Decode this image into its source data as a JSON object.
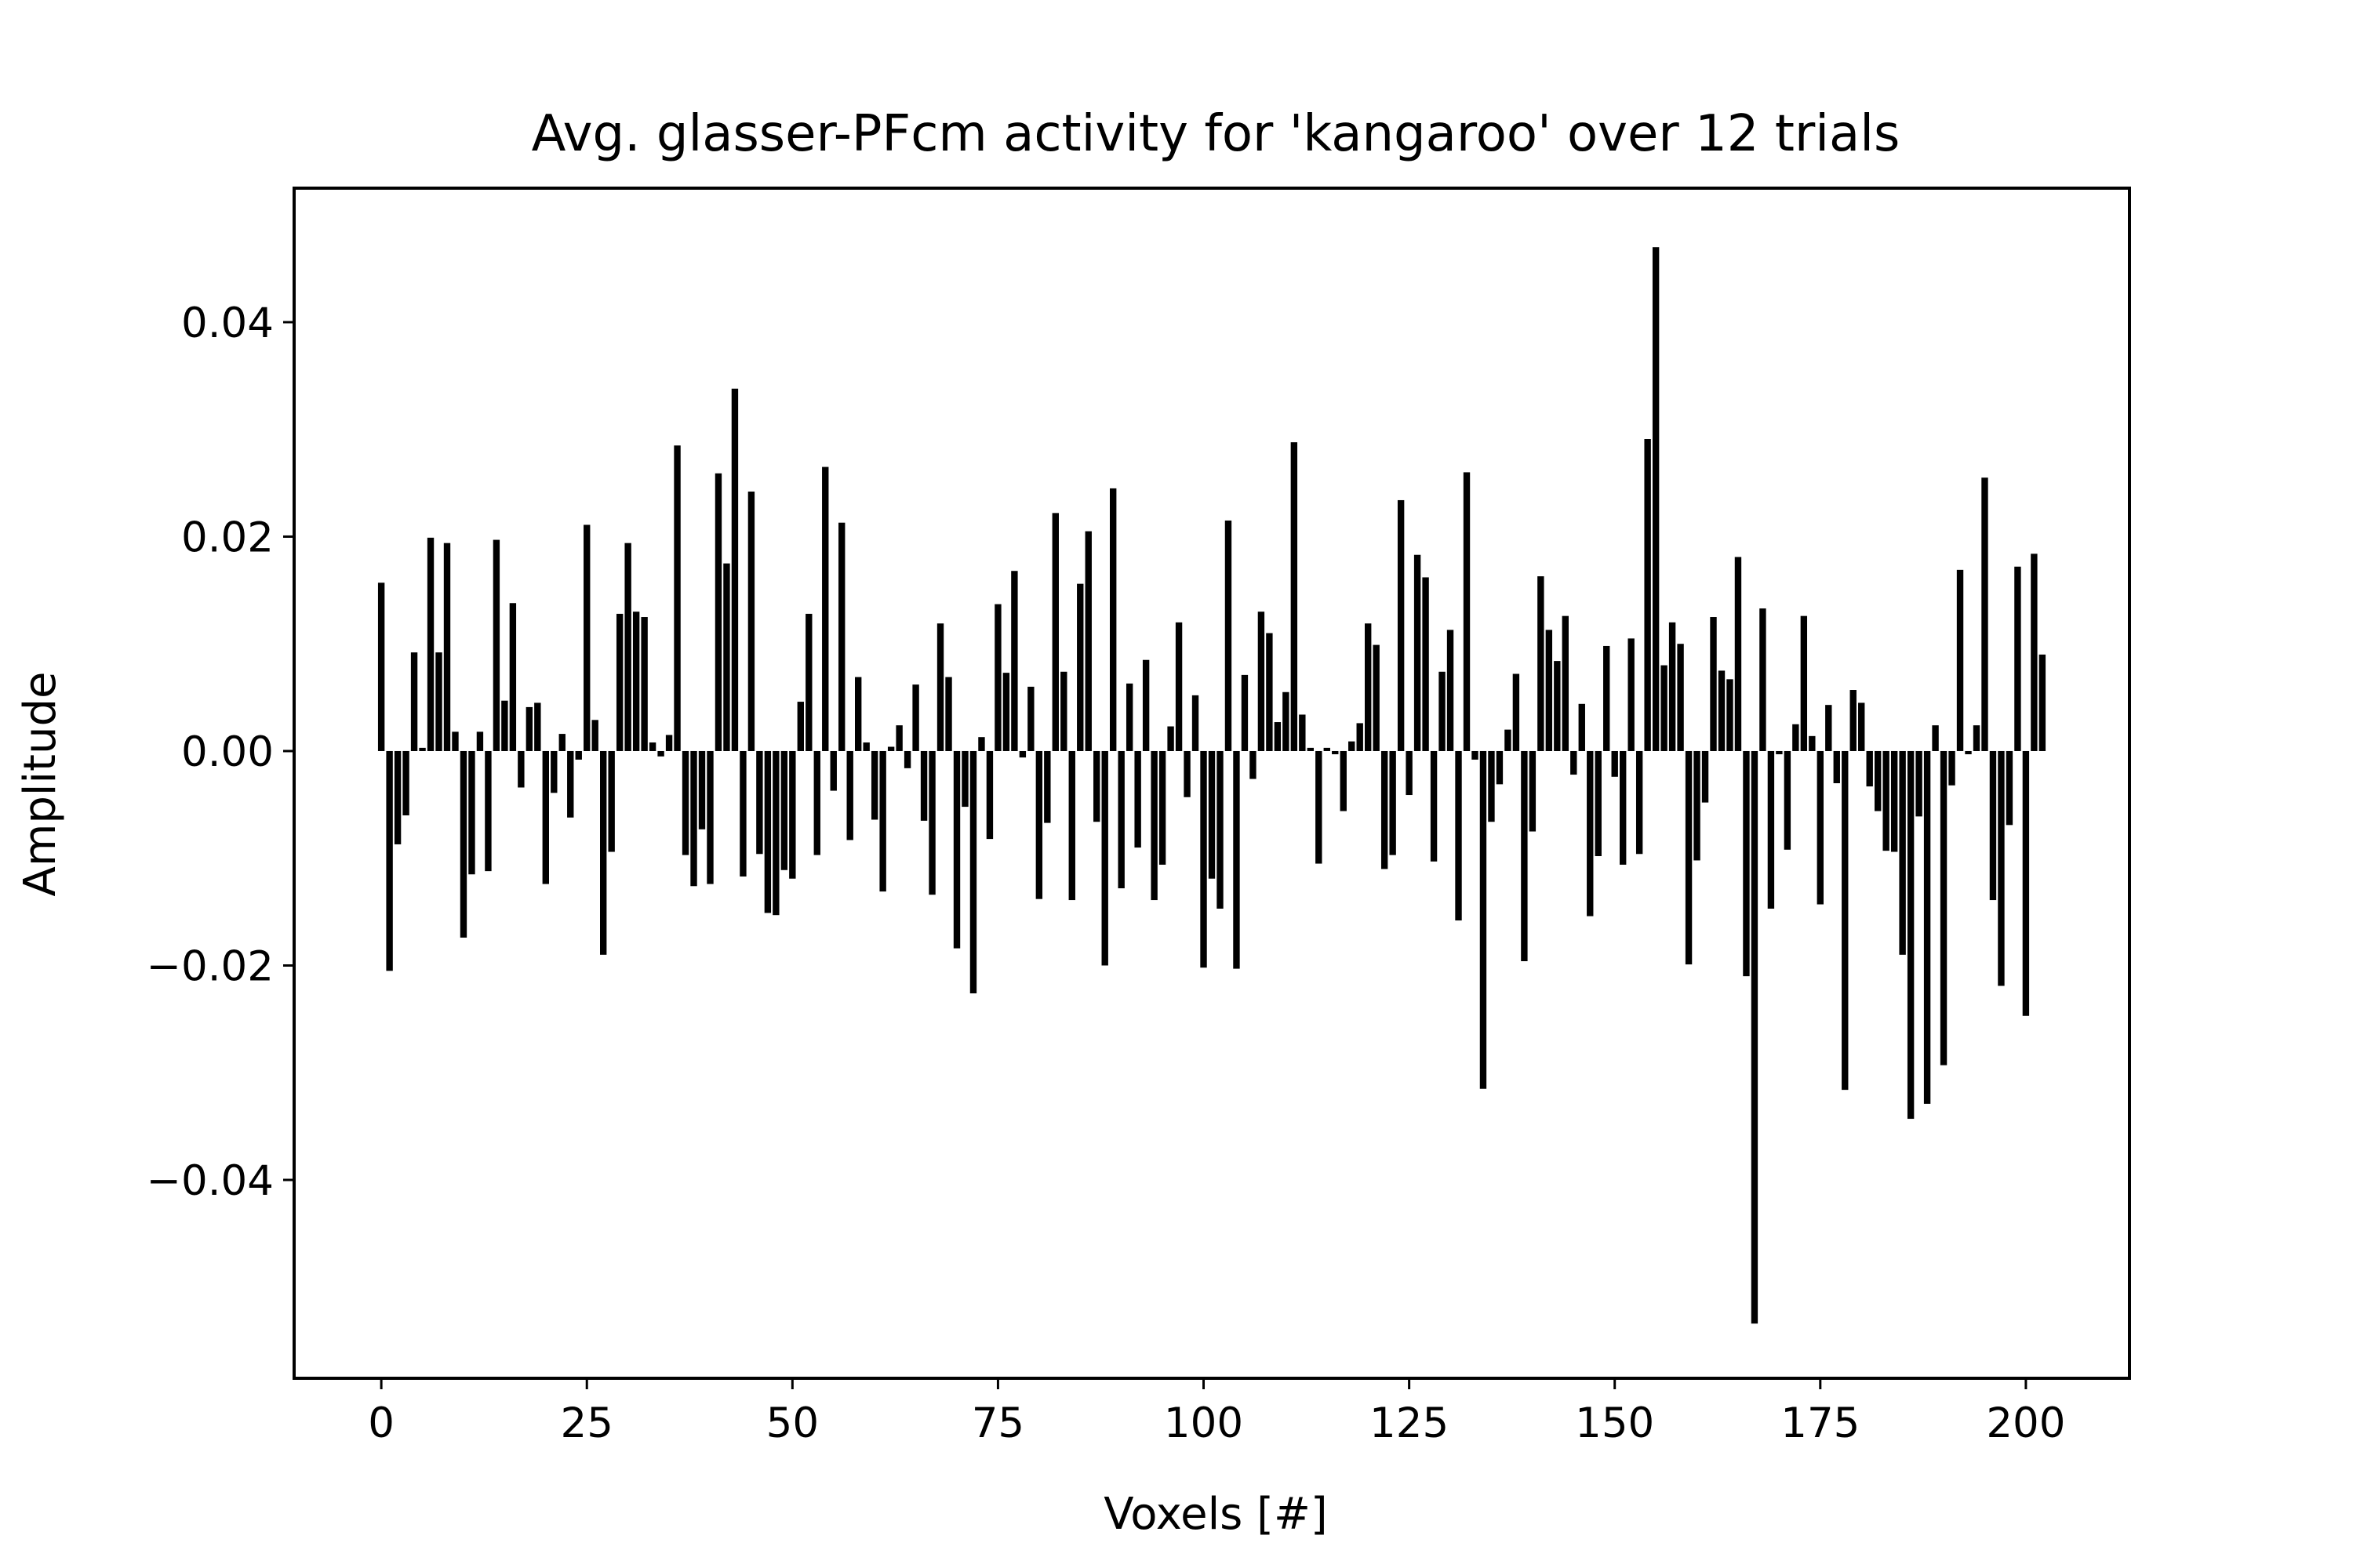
{
  "chart_data": {
    "type": "bar",
    "title": "Avg. glasser-PFcm activity for 'kangaroo' over 12 trials",
    "xlabel": "Voxels [#]",
    "ylabel": "Amplitude",
    "xlim": [
      -10.6,
      212.6
    ],
    "ylim": [
      -0.0585,
      0.0525
    ],
    "xticks": [
      0,
      25,
      50,
      75,
      100,
      125,
      150,
      175,
      200
    ],
    "xtick_labels": [
      "0",
      "25",
      "50",
      "75",
      "100",
      "125",
      "150",
      "175",
      "200"
    ],
    "yticks": [
      -0.04,
      -0.02,
      0.0,
      0.02,
      0.04
    ],
    "ytick_labels": [
      "−0.04",
      "−0.02",
      "0.00",
      "0.02",
      "0.04"
    ],
    "grid": false,
    "bar_color": "#000000",
    "x": [
      0,
      1,
      2,
      3,
      4,
      5,
      6,
      7,
      8,
      9,
      10,
      11,
      12,
      13,
      14,
      15,
      16,
      17,
      18,
      19,
      20,
      21,
      22,
      23,
      24,
      25,
      26,
      27,
      28,
      29,
      30,
      31,
      32,
      33,
      34,
      35,
      36,
      37,
      38,
      39,
      40,
      41,
      42,
      43,
      44,
      45,
      46,
      47,
      48,
      49,
      50,
      51,
      52,
      53,
      54,
      55,
      56,
      57,
      58,
      59,
      60,
      61,
      62,
      63,
      64,
      65,
      66,
      67,
      68,
      69,
      70,
      71,
      72,
      73,
      74,
      75,
      76,
      77,
      78,
      79,
      80,
      81,
      82,
      83,
      84,
      85,
      86,
      87,
      88,
      89,
      90,
      91,
      92,
      93,
      94,
      95,
      96,
      97,
      98,
      99,
      100,
      101,
      102,
      103,
      104,
      105,
      106,
      107,
      108,
      109,
      110,
      111,
      112,
      113,
      114,
      115,
      116,
      117,
      118,
      119,
      120,
      121,
      122,
      123,
      124,
      125,
      126,
      127,
      128,
      129,
      130,
      131,
      132,
      133,
      134,
      135,
      136,
      137,
      138,
      139,
      140,
      141,
      142,
      143,
      144,
      145,
      146,
      147,
      148,
      149,
      150,
      151,
      152,
      153,
      154,
      155,
      156,
      157,
      158,
      159,
      160,
      161,
      162,
      163,
      164,
      165,
      166,
      167,
      168,
      169,
      170,
      171,
      172,
      173,
      174,
      175,
      176,
      177,
      178,
      179,
      180,
      181,
      182,
      183,
      184,
      185,
      186,
      187,
      188,
      189,
      190,
      191,
      192,
      193,
      194,
      195,
      196,
      197,
      198,
      199,
      200,
      201,
      202
    ],
    "values": [
      0.0157,
      -0.0205,
      -0.0087,
      -0.006,
      0.0092,
      0.0003,
      0.0199,
      0.0092,
      0.0194,
      0.0018,
      -0.0174,
      -0.0115,
      0.0018,
      -0.0112,
      0.0197,
      0.0047,
      0.0138,
      -0.0034,
      0.0041,
      0.0045,
      -0.0124,
      -0.0039,
      0.0016,
      -0.0062,
      -0.0008,
      0.0211,
      0.0029,
      -0.019,
      -0.0094,
      0.0128,
      0.0194,
      0.013,
      0.0125,
      0.0008,
      -0.0005,
      0.0015,
      0.0285,
      -0.0097,
      -0.0126,
      -0.0073,
      -0.0124,
      0.0259,
      0.0175,
      0.0338,
      -0.0117,
      0.0242,
      -0.0096,
      -0.0151,
      -0.0153,
      -0.0111,
      -0.0119,
      0.0046,
      0.0128,
      -0.0097,
      0.0265,
      -0.0037,
      0.0213,
      -0.0083,
      0.0069,
      0.0008,
      -0.0064,
      -0.0131,
      0.0004,
      0.0024,
      -0.0016,
      0.0062,
      -0.0065,
      -0.0134,
      0.0119,
      0.0069,
      -0.0184,
      -0.0052,
      -0.0226,
      0.0013,
      -0.0082,
      0.0137,
      0.0073,
      0.0168,
      -0.0006,
      0.006,
      -0.0138,
      -0.0067,
      0.0222,
      0.0074,
      -0.0139,
      0.0156,
      0.0205,
      -0.0066,
      -0.02,
      0.0245,
      -0.0128,
      0.0063,
      -0.009,
      0.0085,
      -0.0139,
      -0.0106,
      0.0023,
      0.012,
      -0.0043,
      0.0052,
      -0.0202,
      -0.0119,
      -0.0147,
      0.0215,
      -0.0203,
      0.0071,
      -0.0026,
      0.013,
      0.011,
      0.0027,
      0.0055,
      0.0288,
      0.0034,
      0.0003,
      -0.0105,
      0.0003,
      -0.0003,
      -0.0056,
      0.0009,
      0.0026,
      0.0119,
      0.0099,
      -0.011,
      -0.0097,
      0.0234,
      -0.0041,
      0.0183,
      0.0162,
      -0.0103,
      0.0074,
      0.0113,
      -0.0158,
      0.026,
      -0.0008,
      -0.0315,
      -0.0066,
      -0.0031,
      0.002,
      0.0072,
      -0.0196,
      -0.0075,
      0.0163,
      0.0113,
      0.0084,
      0.0126,
      -0.0022,
      0.0044,
      -0.0154,
      -0.0098,
      0.0098,
      -0.0024,
      -0.0106,
      0.0105,
      -0.0096,
      0.0291,
      0.047,
      0.008,
      0.012,
      0.01,
      -0.0199,
      -0.0102,
      -0.0048,
      0.0125,
      0.0075,
      0.0067,
      0.0181,
      -0.021,
      -0.0534,
      0.0133,
      -0.0147,
      -0.0003,
      -0.0092,
      0.0025,
      0.0126,
      0.0014,
      -0.0143,
      0.0043,
      -0.003,
      -0.0316,
      0.0057,
      0.0045,
      -0.0033,
      -0.0056,
      -0.0093,
      -0.0094,
      -0.019,
      -0.0343,
      -0.0061,
      -0.0329,
      0.0024,
      -0.0293,
      -0.0032,
      0.0169,
      -0.0003,
      0.0024,
      0.0255,
      -0.0139,
      -0.0219,
      -0.0069,
      0.0172,
      -0.0247,
      0.0184,
      0.009
    ]
  }
}
